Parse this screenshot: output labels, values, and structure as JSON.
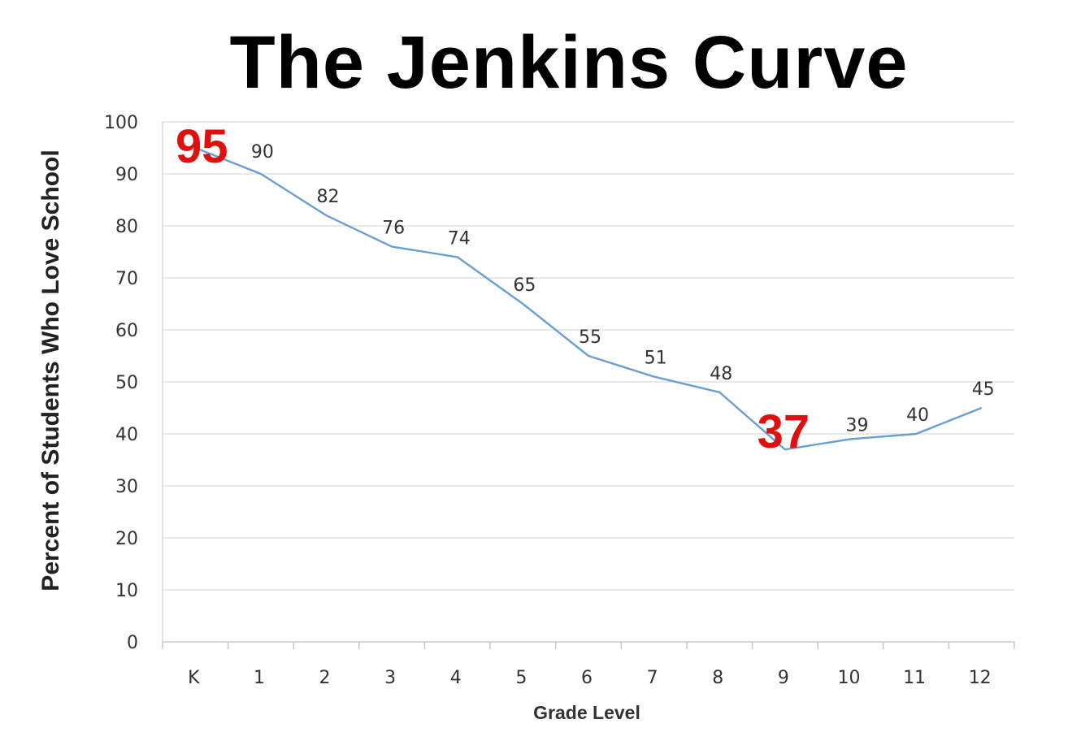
{
  "chart_data": {
    "type": "line",
    "title": "The Jenkins Curve",
    "xlabel": "Grade Level",
    "ylabel": "Percent of Students Who Love School",
    "categories": [
      "K",
      "1",
      "2",
      "3",
      "4",
      "5",
      "6",
      "7",
      "8",
      "9",
      "10",
      "11",
      "12"
    ],
    "series": [
      {
        "values": [
          95,
          90,
          82,
          76,
          74,
          65,
          55,
          51,
          48,
          37,
          39,
          40,
          45
        ],
        "data_labels": [
          "95",
          "90",
          "82",
          "76",
          "74",
          "65",
          "55",
          "51",
          "48",
          "37",
          "39",
          "40",
          "45"
        ],
        "color": "#6a9fd4"
      }
    ],
    "highlighted_labels": [
      "95",
      "37"
    ],
    "highlight_color": "#e01010",
    "ylim": [
      0,
      100
    ],
    "yticks": [
      0,
      10,
      20,
      30,
      40,
      50,
      60,
      70,
      80,
      90,
      100
    ],
    "ytick_labels": [
      "0",
      "10",
      "20",
      "30",
      "40",
      "50",
      "60",
      "70",
      "80",
      "90",
      "100"
    ],
    "grid": true,
    "grid_color": "#d9d9d9",
    "legend": "none"
  }
}
